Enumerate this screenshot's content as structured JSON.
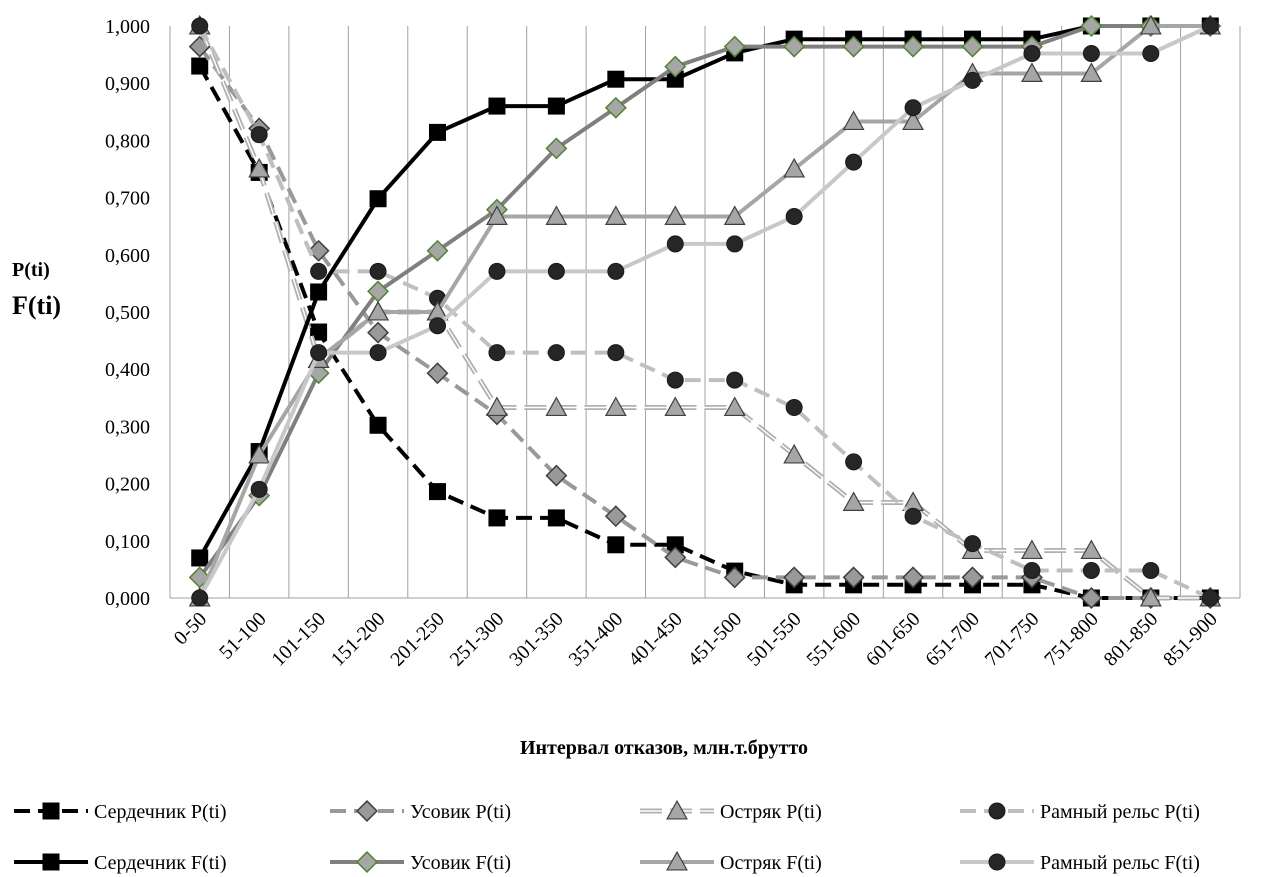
{
  "chart_data": {
    "type": "line",
    "title": "",
    "ylabel": [
      "P(ti)",
      "F(ti)"
    ],
    "xlabel": "Интервал отказов, млн.т.брутто",
    "ylim": [
      0,
      1
    ],
    "yticks": [
      "0,000",
      "0,100",
      "0,200",
      "0,300",
      "0,400",
      "0,500",
      "0,600",
      "0,700",
      "0,800",
      "0,900",
      "1,000"
    ],
    "grid": "vertical",
    "legend_position": "bottom",
    "categories": [
      "0-50",
      "51-100",
      "101-150",
      "151-200",
      "201-250",
      "251-300",
      "301-350",
      "351-400",
      "401-450",
      "451-500",
      "501-550",
      "551-600",
      "601-650",
      "651-700",
      "701-750",
      "751-800",
      "801-850",
      "851-900"
    ],
    "series": [
      {
        "name": "Сердечник P(ti)",
        "color": "#000000",
        "line": "dash",
        "marker": "square",
        "markerFill": "#000000",
        "values": [
          0.93,
          0.744,
          0.465,
          0.302,
          0.186,
          0.14,
          0.14,
          0.093,
          0.093,
          0.047,
          0.023,
          0.023,
          0.023,
          0.023,
          0.023,
          0.0,
          0.0,
          0.0
        ]
      },
      {
        "name": "Усовик P(ti)",
        "color": "#999999",
        "line": "dash",
        "marker": "diamond",
        "markerFill": "#999999",
        "values": [
          0.964,
          0.821,
          0.607,
          0.464,
          0.393,
          0.321,
          0.214,
          0.143,
          0.071,
          0.036,
          0.036,
          0.036,
          0.036,
          0.036,
          0.036,
          0.0,
          0.0,
          0.0
        ]
      },
      {
        "name": "Остряк P(ti)",
        "color": "#b0b0b0",
        "line": "double-dash",
        "marker": "triangle",
        "markerFill": "#a6a6a6",
        "values": [
          1.0,
          0.75,
          0.417,
          0.5,
          0.5,
          0.333,
          0.333,
          0.333,
          0.333,
          0.333,
          0.25,
          0.167,
          0.167,
          0.083,
          0.083,
          0.083,
          0.0,
          0.0
        ]
      },
      {
        "name": "Рамный рельс P(ti)",
        "color": "#bfbfbf",
        "line": "dash",
        "marker": "circle",
        "markerFill": "#262626",
        "values": [
          1.0,
          0.81,
          0.571,
          0.571,
          0.524,
          0.429,
          0.429,
          0.429,
          0.381,
          0.381,
          0.333,
          0.238,
          0.143,
          0.095,
          0.048,
          0.048,
          0.048,
          0.0
        ]
      },
      {
        "name": "Сердечник F(ti)",
        "color": "#000000",
        "line": "solid",
        "marker": "square",
        "markerFill": "#000000",
        "values": [
          0.07,
          0.256,
          0.535,
          0.698,
          0.814,
          0.86,
          0.86,
          0.907,
          0.907,
          0.953,
          0.977,
          0.977,
          0.977,
          0.977,
          0.977,
          1.0,
          1.0,
          1.0
        ]
      },
      {
        "name": "Усовик F(ti)",
        "color": "#7f7f7f",
        "line": "solid",
        "marker": "diamond",
        "markerFill": "#a6a6a6",
        "markerStroke": "#548235",
        "values": [
          0.036,
          0.179,
          0.393,
          0.536,
          0.607,
          0.679,
          0.786,
          0.857,
          0.929,
          0.964,
          0.964,
          0.964,
          0.964,
          0.964,
          0.964,
          1.0,
          1.0,
          1.0
        ]
      },
      {
        "name": "Остряк F(ti)",
        "color": "#a6a6a6",
        "line": "solid",
        "marker": "triangle",
        "markerFill": "#a6a6a6",
        "values": [
          0.0,
          0.25,
          0.417,
          0.5,
          0.5,
          0.667,
          0.667,
          0.667,
          0.667,
          0.667,
          0.75,
          0.833,
          0.833,
          0.917,
          0.917,
          0.917,
          1.0,
          1.0
        ]
      },
      {
        "name": "Рамный рельс F(ti)",
        "color": "#c8c8c8",
        "line": "solid",
        "marker": "circle",
        "markerFill": "#262626",
        "values": [
          0.0,
          0.19,
          0.429,
          0.429,
          0.476,
          0.571,
          0.571,
          0.571,
          0.619,
          0.619,
          0.667,
          0.762,
          0.857,
          0.905,
          0.952,
          0.952,
          0.952,
          1.0
        ]
      }
    ]
  }
}
